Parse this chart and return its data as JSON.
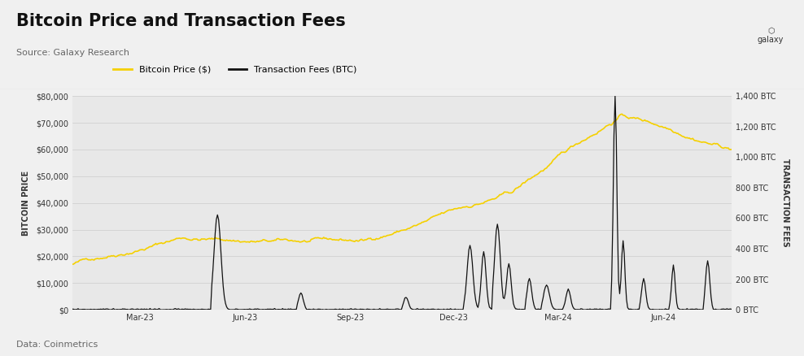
{
  "title": "Bitcoin Price and Transaction Fees",
  "source": "Source: Galaxy Research",
  "footnote": "Data: Coinmetrics",
  "background_color": "#f0f0f0",
  "plot_bg_color": "#e8e8e8",
  "left_ylabel": "BITCOIN PRICE",
  "right_ylabel": "TRANSACTION FEES",
  "left_ylim": [
    0,
    80000
  ],
  "right_ylim": [
    0,
    1400
  ],
  "left_yticks": [
    0,
    10000,
    20000,
    30000,
    40000,
    50000,
    60000,
    70000,
    80000
  ],
  "right_yticks": [
    0,
    200,
    400,
    600,
    800,
    1000,
    1200,
    1400
  ],
  "left_yticklabels": [
    "$0",
    "$10,000",
    "$20,000",
    "$30,000",
    "$40,000",
    "$50,000",
    "$60,000",
    "$70,000",
    "$80,000"
  ],
  "right_yticklabels": [
    "0 BTC",
    "200 BTC",
    "400 BTC",
    "600 BTC",
    "800 BTC",
    "1,000 BTC",
    "1,200 BTC",
    "1,400 BTC"
  ],
  "btc_color": "#F5D000",
  "fees_color": "#111111",
  "legend_btc": "Bitcoin Price ($)",
  "legend_fees": "Transaction Fees (BTC)",
  "title_fontsize": 15,
  "source_fontsize": 8,
  "footnote_fontsize": 8,
  "axis_fontsize": 7,
  "ylabel_fontsize": 7
}
